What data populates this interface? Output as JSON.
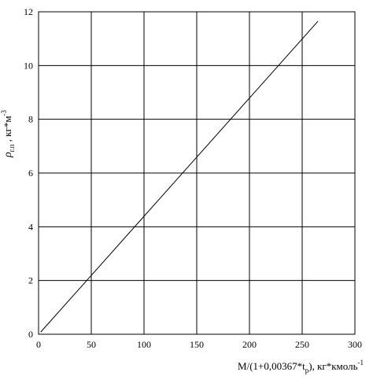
{
  "chart_data": {
    "type": "line",
    "title": "",
    "xlabel": {
      "main": "M/(1+0,00367*t",
      "sub": "p",
      "rest": "), кг*кмоль",
      "sup": "-1"
    },
    "ylabel": {
      "symbol": "ρ",
      "sub": "г.п",
      "rest": " , кг*м",
      "sup": "-3"
    },
    "xlim": [
      0,
      300
    ],
    "ylim": [
      0,
      12
    ],
    "x_ticks": [
      0,
      50,
      100,
      150,
      200,
      250,
      300
    ],
    "y_ticks": [
      0,
      2,
      4,
      6,
      8,
      10,
      12
    ],
    "x_tick_labels": [
      "0",
      "50",
      "100",
      "150",
      "200",
      "250",
      "300"
    ],
    "y_tick_labels": [
      "0",
      "2",
      "4",
      "6",
      "8",
      "10",
      "12"
    ],
    "grid": true,
    "legend": "none",
    "series": [
      {
        "x": [
          2,
          50,
          100,
          150,
          200,
          265
        ],
        "y": [
          0.08,
          2.19,
          4.39,
          6.59,
          8.79,
          11.65
        ]
      }
    ],
    "colors": {
      "line": "#000000",
      "grid": "#000000",
      "background": "#ffffff"
    }
  }
}
